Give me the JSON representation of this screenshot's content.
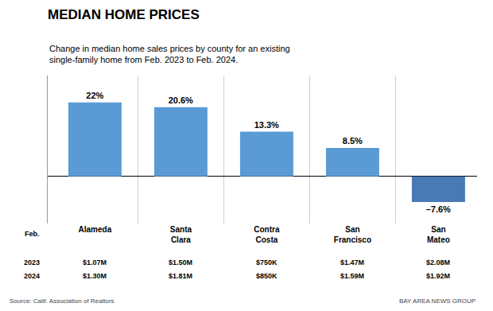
{
  "chart_data": {
    "type": "bar",
    "title": "MEDIAN HOME PRICES",
    "subtitle": "Change in median home sales prices by county for an existing\nsingle-family home from Feb. 2023 to Feb. 2024.",
    "categories": [
      "Alameda",
      "Santa\nClara",
      "Contra\nCosta",
      "San\nFrancisco",
      "San\nMateo"
    ],
    "values": [
      22.0,
      20.6,
      13.3,
      8.5,
      -7.6
    ],
    "value_labels": [
      "22%",
      "20.6%",
      "13.3%",
      "8.5%",
      "–7.6%"
    ],
    "data_labels": true,
    "colors": [
      "#5b9bd5",
      "#5b9bd5",
      "#5b9bd5",
      "#5b9bd5",
      "#4a7ab5"
    ],
    "ylim": [
      -14,
      30
    ],
    "yticks": [],
    "tick_labels": "x",
    "grid": true,
    "annotations": {
      "header": "Feb.",
      "rows": [
        {
          "label": "2023",
          "texts": [
            "$1.07M",
            "$1.50M",
            "$750K",
            "$1.47M",
            "$2.08M"
          ]
        },
        {
          "label": "2024",
          "texts": [
            "$1.30M",
            "$1.81M",
            "$850K",
            "$1.59M",
            "$1.92M"
          ]
        }
      ]
    },
    "source": "Source: Calif. Association of Realtors",
    "credit": "BAY AREA NEWS GROUP"
  }
}
